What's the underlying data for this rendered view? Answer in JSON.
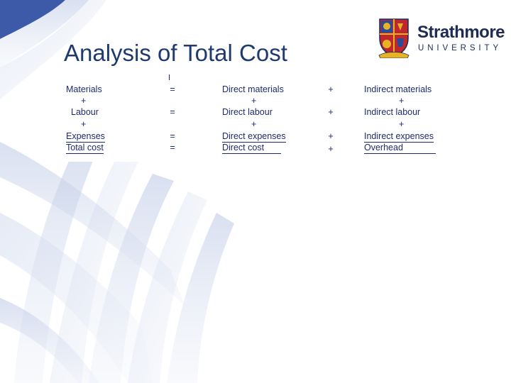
{
  "slide": {
    "title": "Analysis of Total Cost"
  },
  "logo": {
    "name": "Strathmore",
    "subtitle": "UNIVERSITY",
    "colors": {
      "navy": "#1d2b55",
      "red": "#c0272d",
      "gold": "#e6b325",
      "blue": "#2a4a9a"
    }
  },
  "theme": {
    "title_color": "#1f3a6e",
    "table_text_color": "#1d2b6e",
    "decoration_color": "#c9d3ea"
  },
  "cost_table": {
    "rows": [
      {
        "label": "Materials",
        "eq": "=",
        "direct": "Direct materials",
        "op": "+",
        "indirect": "Indirect materials"
      },
      {
        "label": "+",
        "eq": "",
        "direct": "+",
        "op": "",
        "indirect": "+"
      },
      {
        "label": "Labour",
        "eq": "=",
        "direct": "Direct labour",
        "op": "+",
        "indirect": "Indirect labour"
      },
      {
        "label": "+",
        "eq": "",
        "direct": "+",
        "op": "",
        "indirect": "+"
      },
      {
        "label": "Expenses",
        "eq": "=",
        "direct": "Direct expenses",
        "op": "+",
        "indirect": "Indirect expenses"
      },
      {
        "label": "Total cost",
        "eq": "=",
        "direct": "Direct cost",
        "op": "+",
        "indirect": "Overhead"
      }
    ]
  }
}
